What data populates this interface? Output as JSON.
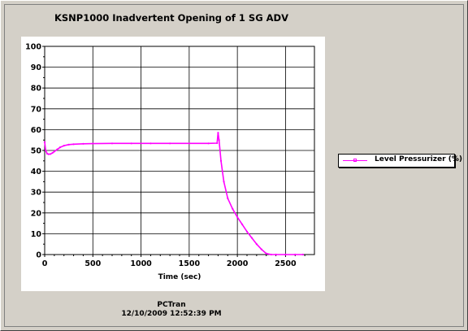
{
  "window": {
    "title": "KSNP1000 Inadvertent Opening of 1 SG ADV",
    "footer_app": "PCTran",
    "footer_timestamp": "12/10/2009 12:52:39 PM"
  },
  "colors": {
    "background": "#d4d0c8",
    "plot_background": "#ffffff",
    "series": "#ff00ff",
    "grid": "#000000"
  },
  "chart_data": {
    "type": "line",
    "title": "KSNP1000 Inadvertent Opening of 1 SG ADV",
    "xlabel": "Time (sec)",
    "ylabel": "",
    "xlim": [
      0,
      2800
    ],
    "ylim": [
      0,
      100
    ],
    "x_ticks": [
      0,
      500,
      1000,
      1500,
      2000,
      2500
    ],
    "y_ticks": [
      0,
      10,
      20,
      30,
      40,
      50,
      60,
      70,
      80,
      90,
      100
    ],
    "grid": true,
    "legend_position": "right",
    "series": [
      {
        "name": "Level Pressurizer (%)",
        "color": "#ff00ff",
        "x": [
          0,
          10,
          25,
          40,
          60,
          80,
          100,
          130,
          160,
          200,
          250,
          300,
          400,
          500,
          700,
          900,
          1100,
          1300,
          1500,
          1700,
          1790,
          1800,
          1810,
          1830,
          1860,
          1900,
          1950,
          2000,
          2050,
          2100,
          2150,
          2200,
          2250,
          2300,
          2350,
          2400,
          2500,
          2600,
          2680
        ],
        "y": [
          54,
          50,
          48.5,
          48.2,
          48.3,
          48.8,
          49.5,
          50.5,
          51.5,
          52.3,
          52.8,
          53,
          53.2,
          53.3,
          53.4,
          53.4,
          53.4,
          53.4,
          53.4,
          53.4,
          53.5,
          58.5,
          55,
          45,
          35,
          27,
          22,
          18,
          14.5,
          11,
          8,
          5,
          2.5,
          0.5,
          0,
          0,
          0,
          0,
          0
        ]
      }
    ]
  }
}
